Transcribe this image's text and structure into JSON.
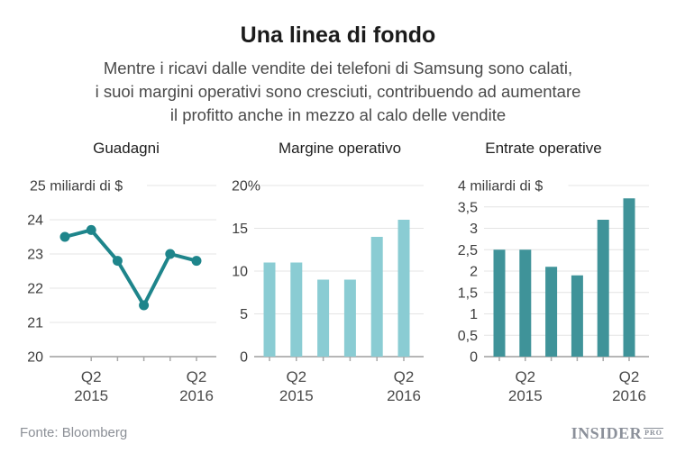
{
  "header": {
    "title": "Una linea di fondo",
    "subtitle_lines": [
      "Mentre i ricavi dalle vendite dei telefoni di Samsung sono calati,",
      "i suoi margini operativi sono cresciuti, contribuendo ad aumentare",
      "il profitto anche in mezzo al calo delle vendite"
    ]
  },
  "footer": {
    "source": "Fonte: Bloomberg",
    "logo_main": "INSIDER",
    "logo_pro": "PRO"
  },
  "colors": {
    "line_teal": "#1e858b",
    "bar_light_teal": "#8accd3",
    "bar_medium_teal": "#3f9399",
    "gridline": "#e4e4e4",
    "axis": "#9d9d9d"
  },
  "chart_data": [
    {
      "type": "line",
      "title": "Guadagni",
      "unit_top_label": "25 miliardi di $",
      "categories": [
        "Q1 2015",
        "Q2 2015",
        "Q3 2015",
        "Q4 2015",
        "Q1 2016",
        "Q2 2016"
      ],
      "values": [
        23.5,
        23.7,
        22.8,
        21.5,
        23.0,
        22.8
      ],
      "y_min": 20,
      "y_max": 25,
      "y_tick_labels": [
        "20",
        "21",
        "22",
        "23",
        "24"
      ],
      "x_tick_labels": [
        {
          "position": 2,
          "quarter": "Q2",
          "year": "2015"
        },
        {
          "position": 6,
          "quarter": "Q2",
          "year": "2016"
        }
      ],
      "color": "#1e858b",
      "grid": true,
      "legend": "none"
    },
    {
      "type": "bar",
      "title": "Margine operativo",
      "unit_top_label": "20%",
      "categories": [
        "Q1 2015",
        "Q2 2015",
        "Q3 2015",
        "Q4 2015",
        "Q1 2016",
        "Q2 2016"
      ],
      "values": [
        11,
        11,
        9,
        9,
        14,
        16
      ],
      "y_min": 0,
      "y_max": 20,
      "y_tick_labels": [
        "0",
        "5",
        "10",
        "15"
      ],
      "x_tick_labels": [
        {
          "position": 2,
          "quarter": "Q2",
          "year": "2015"
        },
        {
          "position": 6,
          "quarter": "Q2",
          "year": "2016"
        }
      ],
      "color": "#8accd3",
      "grid": true,
      "legend": "none"
    },
    {
      "type": "bar",
      "title": "Entrate operative",
      "unit_top_label": "4 miliardi di $",
      "categories": [
        "Q1 2015",
        "Q2 2015",
        "Q3 2015",
        "Q4 2015",
        "Q1 2016",
        "Q2 2016"
      ],
      "values": [
        2.5,
        2.5,
        2.1,
        1.9,
        3.2,
        3.7
      ],
      "y_min": 0,
      "y_max": 4,
      "y_tick_labels": [
        "0",
        "0,5",
        "1",
        "1,5",
        "2",
        "2,5",
        "3",
        "3,5"
      ],
      "x_tick_labels": [
        {
          "position": 2,
          "quarter": "Q2",
          "year": "2015"
        },
        {
          "position": 6,
          "quarter": "Q2",
          "year": "2016"
        }
      ],
      "color": "#3f9399",
      "grid": true,
      "legend": "none"
    }
  ]
}
